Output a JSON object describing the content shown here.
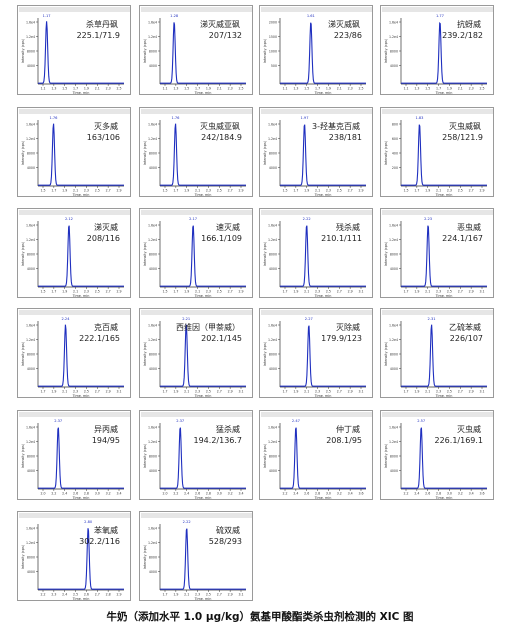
{
  "caption": "牛奶（添加水平 1.0 μg/kg）氨基甲酸酯类杀虫剂检测的 XIC 图",
  "chart_data": [
    {
      "type": "line",
      "name": "杀草丹砜",
      "mz": "225.1/71.9",
      "peak_rt": 1.17,
      "rt_label": "1.17",
      "xlim": [
        1.0,
        2.7
      ],
      "ylim": [
        0,
        1.6
      ],
      "x_ticks": [
        "1.1",
        "1.3",
        "1.5",
        "1.7",
        "1.9",
        "2.1",
        "2.3",
        "2.5"
      ],
      "y_ticks": [
        "1.6e4",
        "1.2e4",
        "8000",
        "4000"
      ],
      "ylabel": "Intensity (cps)",
      "xlabel": "Time, min"
    },
    {
      "type": "line",
      "name": "涕灭威亚砜",
      "mz": "207/132",
      "peak_rt": 1.28,
      "rt_label": "1.28",
      "xlim": [
        1.0,
        2.7
      ],
      "ylim": [
        0,
        1.6
      ],
      "x_ticks": [
        "1.1",
        "1.3",
        "1.5",
        "1.7",
        "1.9",
        "2.1",
        "2.3",
        "2.5"
      ],
      "y_ticks": [
        "1.6e4",
        "1.2e4",
        "8000",
        "4000"
      ],
      "ylabel": "Intensity (cps)",
      "xlabel": "Time, min"
    },
    {
      "type": "line",
      "name": "涕灭威砜",
      "mz": "223/86",
      "peak_rt": 1.61,
      "rt_label": "1.61",
      "xlim": [
        1.0,
        2.7
      ],
      "ylim": [
        0,
        1.6
      ],
      "x_ticks": [
        "1.1",
        "1.3",
        "1.5",
        "1.7",
        "1.9",
        "2.1",
        "2.3",
        "2.5"
      ],
      "y_ticks": [
        "2000",
        "1500",
        "1000",
        "500"
      ],
      "ylabel": "Intensity (cps)",
      "xlabel": "Time, min"
    },
    {
      "type": "line",
      "name": "抗蚜威",
      "mz": "239.2/182",
      "peak_rt": 1.77,
      "rt_label": "1.77",
      "xlim": [
        1.0,
        2.7
      ],
      "ylim": [
        0,
        1.6
      ],
      "x_ticks": [
        "1.1",
        "1.3",
        "1.5",
        "1.7",
        "1.9",
        "2.1",
        "2.3",
        "2.5"
      ],
      "y_ticks": [
        "1.6e4",
        "1.2e4",
        "8000",
        "4000"
      ],
      "ylabel": "Intensity (cps)",
      "xlabel": "Time, min"
    },
    {
      "type": "line",
      "name": "灭多威",
      "mz": "163/106",
      "peak_rt": 1.76,
      "rt_label": "1.76",
      "xlim": [
        1.4,
        3.4
      ],
      "ylim": [
        0,
        1.6
      ],
      "x_ticks": [
        "1.5",
        "1.7",
        "1.9",
        "2.1",
        "2.3",
        "2.5",
        "2.7",
        "2.9"
      ],
      "y_ticks": [
        "1.6e4",
        "1.2e4",
        "8000",
        "4000"
      ],
      "ylabel": "Intensity (cps)",
      "xlabel": "Time, min"
    },
    {
      "type": "line",
      "name": "灭虫威亚砜",
      "mz": "242/184.9",
      "peak_rt": 1.76,
      "rt_label": "1.76",
      "xlim": [
        1.4,
        3.4
      ],
      "ylim": [
        0,
        1.6
      ],
      "x_ticks": [
        "1.5",
        "1.7",
        "1.9",
        "2.1",
        "2.3",
        "2.5",
        "2.7",
        "2.9"
      ],
      "y_ticks": [
        "1.6e4",
        "1.2e4",
        "8000",
        "4000"
      ],
      "ylabel": "Intensity (cps)",
      "xlabel": "Time, min"
    },
    {
      "type": "line",
      "name": "3-羟基克百威",
      "mz": "238/181",
      "peak_rt": 1.97,
      "rt_label": "1.97",
      "xlim": [
        1.4,
        3.4
      ],
      "ylim": [
        0,
        1.6
      ],
      "x_ticks": [
        "1.5",
        "1.7",
        "1.9",
        "2.1",
        "2.3",
        "2.5",
        "2.7",
        "2.9"
      ],
      "y_ticks": [
        "1.6e4",
        "1.2e4",
        "8000",
        "4000"
      ],
      "ylabel": "Intensity (cps)",
      "xlabel": "Time, min"
    },
    {
      "type": "line",
      "name": "灭虫威砜",
      "mz": "258/121.9",
      "peak_rt": 1.83,
      "rt_label": "1.83",
      "xlim": [
        1.4,
        3.4
      ],
      "ylim": [
        0,
        1.6
      ],
      "x_ticks": [
        "1.5",
        "1.7",
        "1.9",
        "2.1",
        "2.3",
        "2.5",
        "2.7",
        "2.9"
      ],
      "y_ticks": [
        "800",
        "600",
        "400",
        "200"
      ],
      "ylabel": "Intensity (cps)",
      "xlabel": "Time, min"
    },
    {
      "type": "line",
      "name": "涕灭威",
      "mz": "208/116",
      "peak_rt": 2.12,
      "rt_label": "2.12",
      "xlim": [
        1.4,
        3.4
      ],
      "ylim": [
        0,
        1.6
      ],
      "x_ticks": [
        "1.5",
        "1.7",
        "1.9",
        "2.1",
        "2.3",
        "2.5",
        "2.7",
        "2.9"
      ],
      "y_ticks": [
        "1.6e4",
        "1.2e4",
        "8000",
        "4000"
      ],
      "ylabel": "Intensity (cps)",
      "xlabel": "Time, min"
    },
    {
      "type": "line",
      "name": "速灭威",
      "mz": "166.1/109",
      "peak_rt": 2.17,
      "rt_label": "2.17",
      "xlim": [
        1.4,
        3.4
      ],
      "ylim": [
        0,
        1.6
      ],
      "x_ticks": [
        "1.5",
        "1.7",
        "1.9",
        "2.1",
        "2.3",
        "2.5",
        "2.7",
        "2.9"
      ],
      "y_ticks": [
        "1.6e4",
        "1.2e4",
        "8000",
        "4000"
      ],
      "ylabel": "Intensity (cps)",
      "xlabel": "Time, min"
    },
    {
      "type": "line",
      "name": "残杀威",
      "mz": "210.1/111",
      "peak_rt": 2.22,
      "rt_label": "2.22",
      "xlim": [
        1.6,
        3.6
      ],
      "ylim": [
        0,
        1.6
      ],
      "x_ticks": [
        "1.7",
        "1.9",
        "2.1",
        "2.3",
        "2.5",
        "2.7",
        "2.9",
        "3.1"
      ],
      "y_ticks": [
        "1.6e4",
        "1.2e4",
        "8000",
        "4000"
      ],
      "ylabel": "Intensity (cps)",
      "xlabel": "Time, min"
    },
    {
      "type": "line",
      "name": "恶虫威",
      "mz": "224.1/167",
      "peak_rt": 2.23,
      "rt_label": "2.23",
      "xlim": [
        1.6,
        3.6
      ],
      "ylim": [
        0,
        1.6
      ],
      "x_ticks": [
        "1.7",
        "1.9",
        "2.1",
        "2.3",
        "2.5",
        "2.7",
        "2.9",
        "3.1"
      ],
      "y_ticks": [
        "1.6e4",
        "1.2e4",
        "8000",
        "4000"
      ],
      "ylabel": "Intensity (cps)",
      "xlabel": "Time, min"
    },
    {
      "type": "line",
      "name": "克百威",
      "mz": "222.1/165",
      "peak_rt": 2.24,
      "rt_label": "2.24",
      "xlim": [
        1.6,
        3.6
      ],
      "ylim": [
        0,
        1.6
      ],
      "x_ticks": [
        "1.7",
        "1.9",
        "2.1",
        "2.3",
        "2.5",
        "2.7",
        "2.9",
        "3.1"
      ],
      "y_ticks": [
        "1.6e4",
        "1.2e4",
        "8000",
        "4000"
      ],
      "ylabel": "Intensity (cps)",
      "xlabel": "Time, min"
    },
    {
      "type": "line",
      "name": "西维因（甲萘威）",
      "mz": "202.1/145",
      "peak_rt": 2.21,
      "rt_label": "2.21",
      "xlim": [
        1.6,
        3.6
      ],
      "ylim": [
        0,
        1.6
      ],
      "x_ticks": [
        "1.7",
        "1.9",
        "2.1",
        "2.3",
        "2.5",
        "2.7",
        "2.9",
        "3.1"
      ],
      "y_ticks": [
        "1.6e4",
        "1.2e4",
        "8000",
        "4000"
      ],
      "ylabel": "Intensity (cps)",
      "xlabel": "Time, min"
    },
    {
      "type": "line",
      "name": "灭除威",
      "mz": "179.9/123",
      "peak_rt": 2.27,
      "rt_label": "2.27",
      "xlim": [
        1.6,
        3.6
      ],
      "ylim": [
        0,
        1.6
      ],
      "x_ticks": [
        "1.7",
        "1.9",
        "2.1",
        "2.3",
        "2.5",
        "2.7",
        "2.9",
        "3.1"
      ],
      "y_ticks": [
        "1.6e4",
        "1.2e4",
        "8000",
        "4000"
      ],
      "ylabel": "Intensity (cps)",
      "xlabel": "Time, min"
    },
    {
      "type": "line",
      "name": "乙硫苯威",
      "mz": "226/107",
      "peak_rt": 2.31,
      "rt_label": "2.31",
      "xlim": [
        1.6,
        3.6
      ],
      "ylim": [
        0,
        1.6
      ],
      "x_ticks": [
        "1.7",
        "1.9",
        "2.1",
        "2.3",
        "2.5",
        "2.7",
        "2.9",
        "3.1"
      ],
      "y_ticks": [
        "1.6e4",
        "1.2e4",
        "8000",
        "4000"
      ],
      "ylabel": "Intensity (cps)",
      "xlabel": "Time, min"
    },
    {
      "type": "line",
      "name": "异丙威",
      "mz": "194/95",
      "peak_rt": 2.37,
      "rt_label": "2.37",
      "xlim": [
        1.9,
        3.9
      ],
      "ylim": [
        0,
        1.6
      ],
      "x_ticks": [
        "2.0",
        "2.2",
        "2.4",
        "2.6",
        "2.8",
        "3.0",
        "3.2",
        "3.4"
      ],
      "y_ticks": [
        "1.6e4",
        "1.2e4",
        "8000",
        "4000"
      ],
      "ylabel": "Intensity (cps)",
      "xlabel": "Time, min"
    },
    {
      "type": "line",
      "name": "猛杀威",
      "mz": "194.2/136.7",
      "peak_rt": 2.37,
      "rt_label": "2.37",
      "xlim": [
        1.9,
        3.9
      ],
      "ylim": [
        0,
        1.6
      ],
      "x_ticks": [
        "2.0",
        "2.2",
        "2.4",
        "2.6",
        "2.8",
        "3.0",
        "3.2",
        "3.4"
      ],
      "y_ticks": [
        "1.6e4",
        "1.2e4",
        "8000",
        "4000"
      ],
      "ylabel": "Intensity (cps)",
      "xlabel": "Time, min"
    },
    {
      "type": "line",
      "name": "仲丁威",
      "mz": "208.1/95",
      "peak_rt": 2.47,
      "rt_label": "2.47",
      "xlim": [
        2.1,
        4.1
      ],
      "ylim": [
        0,
        1.6
      ],
      "x_ticks": [
        "2.2",
        "2.4",
        "2.6",
        "2.8",
        "3.0",
        "3.2",
        "3.4",
        "3.6"
      ],
      "y_ticks": [
        "1.6e4",
        "1.2e4",
        "8000",
        "4000"
      ],
      "ylabel": "Intensity (cps)",
      "xlabel": "Time, min"
    },
    {
      "type": "line",
      "name": "灭虫威",
      "mz": "226.1/169.1",
      "peak_rt": 2.57,
      "rt_label": "2.57",
      "xlim": [
        2.1,
        4.1
      ],
      "ylim": [
        0,
        1.6
      ],
      "x_ticks": [
        "2.2",
        "2.4",
        "2.6",
        "2.8",
        "3.0",
        "3.2",
        "3.4",
        "3.6"
      ],
      "y_ticks": [
        "1.6e4",
        "1.2e4",
        "8000",
        "4000"
      ],
      "ylabel": "Intensity (cps)",
      "xlabel": "Time, min"
    },
    {
      "type": "line",
      "name": "苯氧威",
      "mz": "302.2/116",
      "peak_rt": 2.8,
      "rt_label": "2.80",
      "xlim": [
        2.1,
        3.3
      ],
      "ylim": [
        0,
        1.6
      ],
      "x_ticks": [
        "2.2",
        "2.3",
        "2.4",
        "2.5",
        "2.6",
        "2.7",
        "2.8",
        "2.9"
      ],
      "y_ticks": [
        "1.6e4",
        "1.2e4",
        "8000",
        "4000"
      ],
      "ylabel": "Intensity (cps)",
      "xlabel": "Time, min"
    },
    {
      "type": "line",
      "name": "硫双威",
      "mz": "528/293",
      "peak_rt": 2.22,
      "rt_label": "2.22",
      "xlim": [
        1.6,
        3.6
      ],
      "ylim": [
        0,
        1.6
      ],
      "x_ticks": [
        "1.7",
        "1.9",
        "2.1",
        "2.3",
        "2.5",
        "2.7",
        "2.9",
        "3.1"
      ],
      "y_ticks": [
        "1.6e4",
        "1.2e4",
        "8000",
        "4000"
      ],
      "ylabel": "Intensity (cps)",
      "xlabel": "Time, min"
    }
  ]
}
